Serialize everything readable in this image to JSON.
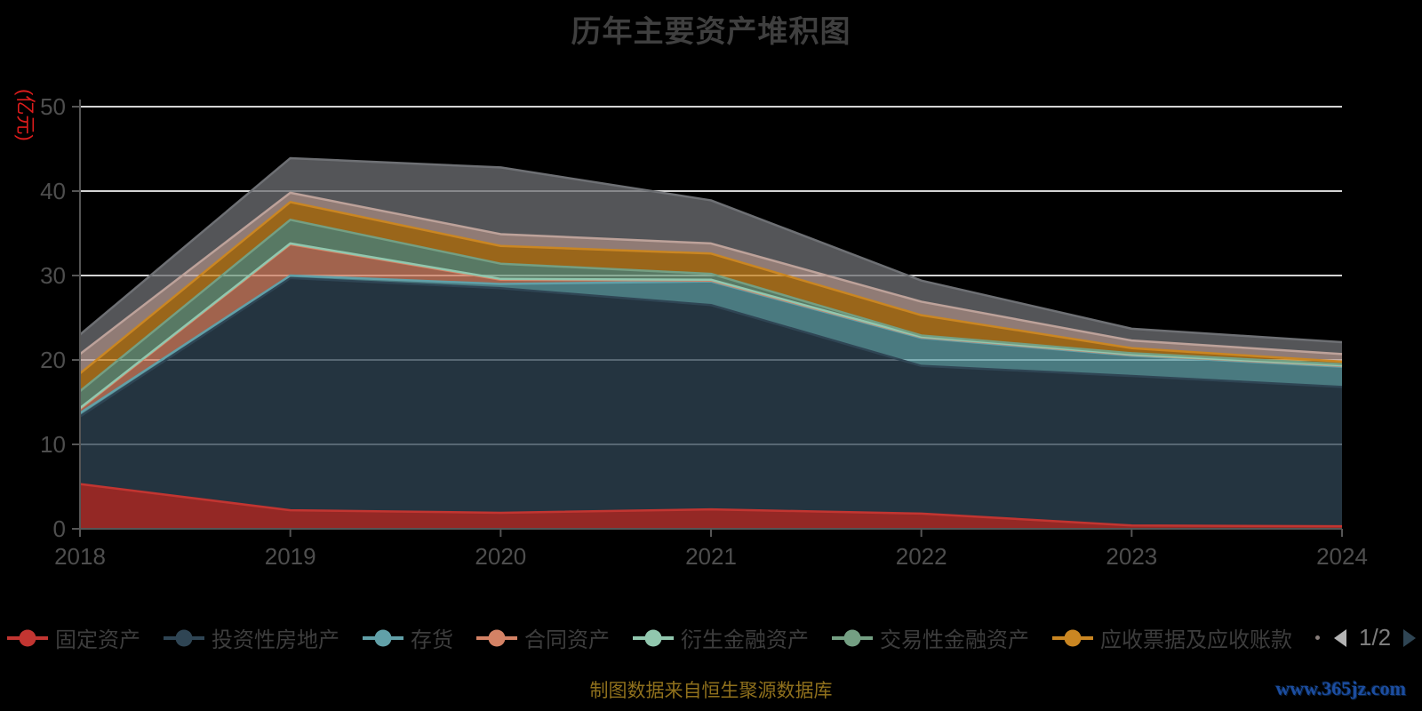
{
  "title": "历年主要资产堆积图",
  "y_axis_name": "(亿元)",
  "footer": {
    "source_note": "制图数据来自恒生聚源数据库",
    "watermark": "www.365jz.com"
  },
  "colors": {
    "background": "#000000",
    "title_text": "#3f3f3f",
    "axis_line": "#555555",
    "axis_label": "#4e4e4e",
    "gridline": "#d4d4d4",
    "y_axis_name_red": "#dd1c1c",
    "legend_text": "#3d3d3d",
    "pager_prev_inactive": "#b4b4b4",
    "pager_next_active": "#2f4554",
    "source_note_gold": "#8f701c",
    "watermark_blue": "#1c4da0"
  },
  "legend": {
    "items": [
      {
        "label": "固定资产",
        "color": "#c23531"
      },
      {
        "label": "投资性房地产",
        "color": "#2f4554"
      },
      {
        "label": "存货",
        "color": "#61a0a8"
      },
      {
        "label": "合同资产",
        "color": "#d48265"
      },
      {
        "label": "衍生金融资产",
        "color": "#91c7ae"
      },
      {
        "label": "交易性金融资产",
        "color": "#749f83"
      },
      {
        "label": "应收票据及应收账款",
        "color": "#ca8622"
      }
    ],
    "pager": {
      "current": "1/2",
      "prev_icon": "left-triangle",
      "next_icon": "right-triangle"
    }
  },
  "chart_data": {
    "type": "area",
    "stacked": true,
    "title": "历年主要资产堆积图",
    "xlabel": "",
    "ylabel": "(亿元)",
    "x": [
      2018,
      2019,
      2020,
      2021,
      2022,
      2023,
      2024
    ],
    "ylim": [
      0,
      50
    ],
    "yticks": [
      0,
      10,
      20,
      30,
      40,
      50
    ],
    "grid": true,
    "legend_position": "bottom",
    "area_opacity": 0.76,
    "series": [
      {
        "name": "固定资产",
        "color": "#c23531",
        "values": [
          5.3,
          2.2,
          1.9,
          2.3,
          1.8,
          0.4,
          0.3
        ]
      },
      {
        "name": "投资性房地产",
        "color": "#2f4554",
        "values": [
          8.0,
          27.5,
          26.6,
          24.2,
          17.5,
          17.7,
          16.5
        ]
      },
      {
        "name": "存货",
        "color": "#61a0a8",
        "values": [
          0.4,
          0.3,
          0.5,
          2.8,
          3.3,
          2.4,
          2.4
        ]
      },
      {
        "name": "合同资产",
        "color": "#d48265",
        "values": [
          0.5,
          3.7,
          0.5,
          0.1,
          0.1,
          0.1,
          0.1
        ]
      },
      {
        "name": "衍生金融资产",
        "color": "#91c7ae",
        "values": [
          0.1,
          0.1,
          0.1,
          0.1,
          0.05,
          0.05,
          0.05
        ]
      },
      {
        "name": "交易性金融资产",
        "color": "#749f83",
        "values": [
          2.0,
          2.8,
          1.8,
          0.7,
          0.15,
          0.15,
          0.15
        ]
      },
      {
        "name": "应收票据及应收账款",
        "color": "#ca8622",
        "values": [
          2.1,
          2.1,
          2.1,
          2.4,
          2.4,
          0.6,
          0.3
        ]
      },
      {
        "name": "",
        "color": "#bda29a",
        "in_visible_legend": false,
        "values": [
          2.3,
          1.1,
          1.4,
          1.2,
          1.6,
          0.9,
          0.9
        ]
      },
      {
        "name": "",
        "color": "#6e7074",
        "in_visible_legend": false,
        "values": [
          2.3,
          4.1,
          7.9,
          5.1,
          2.5,
          1.4,
          1.4
        ]
      }
    ]
  }
}
